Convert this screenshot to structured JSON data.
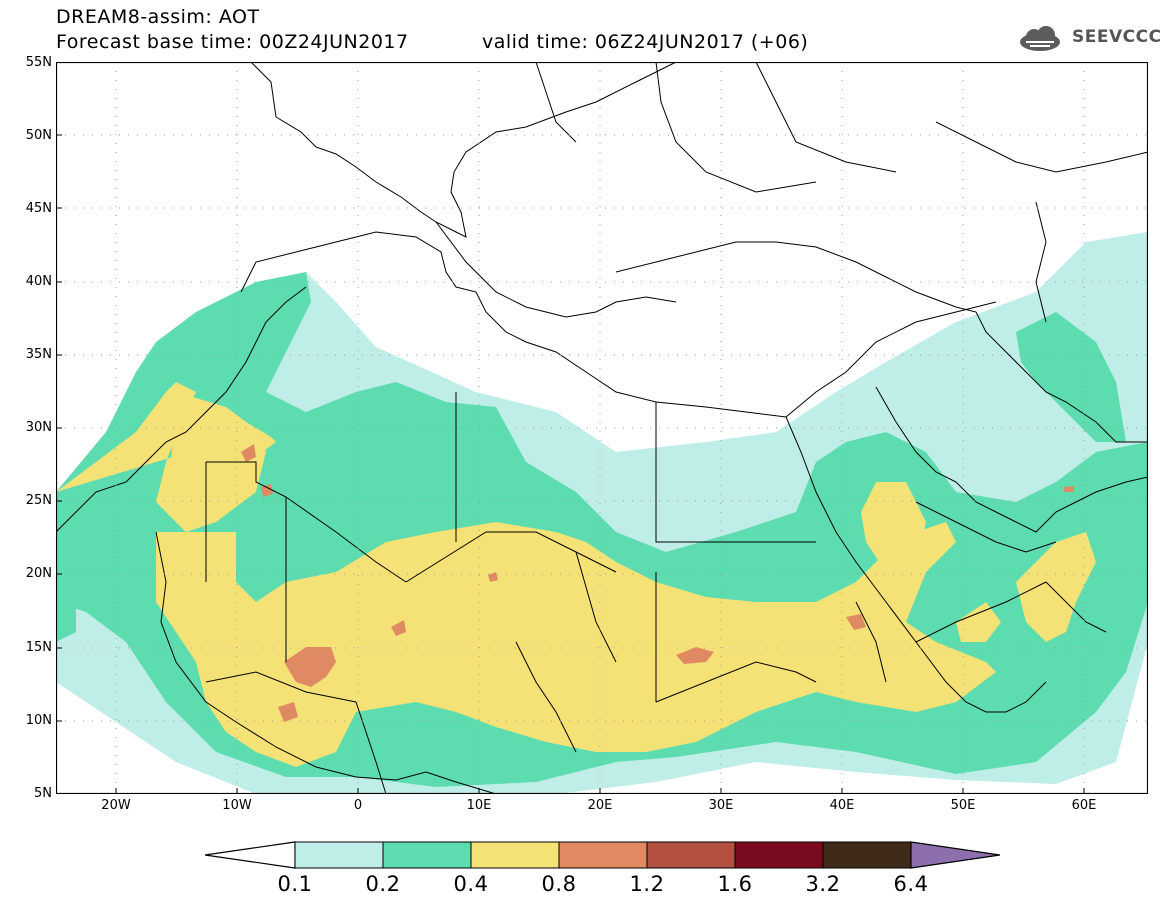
{
  "header": {
    "title": "DREAM8-assim: AOT",
    "forecast_base": "Forecast base time: 00Z24JUN2017",
    "valid_time": "valid time: 06Z24JUN2017 (+06)"
  },
  "logo": {
    "icon": "cloud-icon",
    "text": "SEEVCCC"
  },
  "map": {
    "lat_labels": [
      "55N",
      "50N",
      "45N",
      "40N",
      "35N",
      "30N",
      "25N",
      "20N",
      "15N",
      "10N",
      "5N"
    ],
    "lon_labels": [
      "20W",
      "10W",
      "0",
      "10E",
      "20E",
      "30E",
      "40E",
      "50E",
      "60E"
    ],
    "lat_range": [
      5,
      55
    ],
    "lon_range": [
      -25,
      65
    ],
    "field": "Aerosol optical thickness",
    "colors": {
      "c0_1": "#bfeee8",
      "c0_2": "#5ddcb0",
      "c0_4": "#f5e276",
      "c0_8": "#e08a64",
      "c1_2": "#b4503f"
    }
  },
  "colorbar": {
    "labels": [
      "0.1",
      "0.2",
      "0.4",
      "0.8",
      "1.2",
      "1.6",
      "3.2",
      "6.4"
    ],
    "colors": [
      "#ffffff",
      "#bfeee8",
      "#5ddcb0",
      "#f5e276",
      "#e08a64",
      "#b4503f",
      "#7a0a1e",
      "#3f2a1a",
      "#8e6fae"
    ]
  }
}
